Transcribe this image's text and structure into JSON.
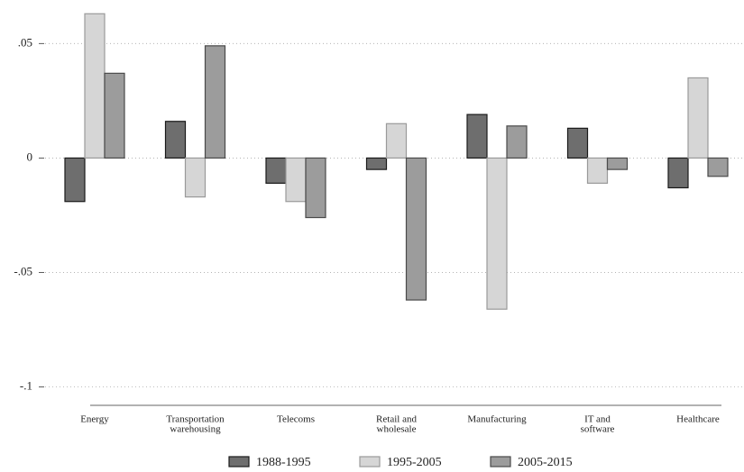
{
  "chart_data": {
    "type": "bar",
    "categories": [
      [
        "Energy"
      ],
      [
        "Transportation",
        "warehousing"
      ],
      [
        "Telecoms"
      ],
      [
        "Retail and",
        "wholesale"
      ],
      [
        "Manufacturing"
      ],
      [
        "IT and",
        "software"
      ],
      [
        "Healthcare"
      ]
    ],
    "series": [
      {
        "name": "1988-1995",
        "color": "#6e6e6e",
        "stroke": "#1a1a1a",
        "values": [
          -0.019,
          0.016,
          -0.011,
          -0.005,
          0.019,
          0.013,
          -0.013
        ]
      },
      {
        "name": "1995-2005",
        "color": "#d6d6d6",
        "stroke": "#9a9a9a",
        "values": [
          0.063,
          -0.017,
          -0.019,
          0.015,
          -0.066,
          -0.011,
          0.035
        ]
      },
      {
        "name": "2005-2015",
        "color": "#9c9c9c",
        "stroke": "#4a4a4a",
        "values": [
          0.037,
          0.049,
          -0.026,
          -0.062,
          0.014,
          -0.005,
          -0.008
        ]
      }
    ],
    "ylim": [
      -0.108,
      0.069
    ],
    "yticks": [
      {
        "value": 0.05,
        "label": ".05"
      },
      0,
      {
        "value": -0.05,
        "label": "-.05"
      },
      {
        "value": -0.1,
        "label": "-.1"
      }
    ],
    "grid": true,
    "legend": "bottom"
  }
}
